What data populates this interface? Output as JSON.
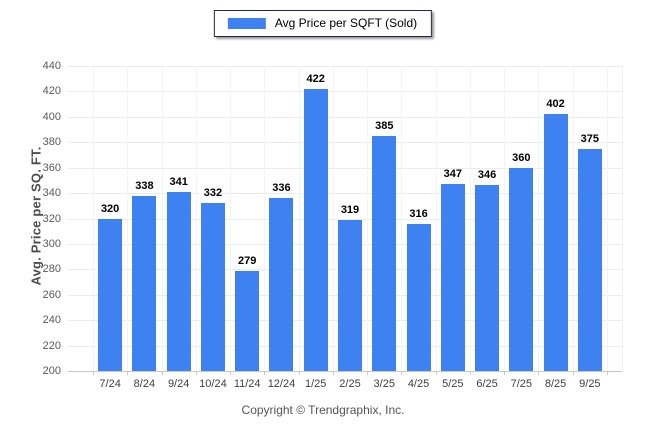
{
  "legend": {
    "label": "Avg Price per SQFT (Sold)"
  },
  "footer": {
    "copyright": "Copyright © Trendgraphix, Inc."
  },
  "colors": {
    "bar": "#3e82f2",
    "legend_border": "#1c2b45",
    "gridline": "#ececec",
    "axis_line": "#c9c9c9",
    "value_label": "#000000",
    "tick_label": "#5a5a5a"
  },
  "chart_data": {
    "type": "bar",
    "title": "Avg Price per SQFT (Sold)",
    "categories": [
      "7/24",
      "8/24",
      "9/24",
      "10/24",
      "11/24",
      "12/24",
      "1/25",
      "2/25",
      "3/25",
      "4/25",
      "5/25",
      "6/25",
      "7/25",
      "8/25",
      "9/25"
    ],
    "values": [
      320,
      338,
      341,
      332,
      279,
      336,
      422,
      319,
      385,
      316,
      347,
      346,
      360,
      402,
      375
    ],
    "xlabel": "",
    "ylabel": "Avg. Price per SQ. FT.",
    "ylim": [
      200,
      440
    ],
    "ytick_step": 20,
    "grid": true,
    "legend_position": "top-center",
    "value_labels": true
  }
}
